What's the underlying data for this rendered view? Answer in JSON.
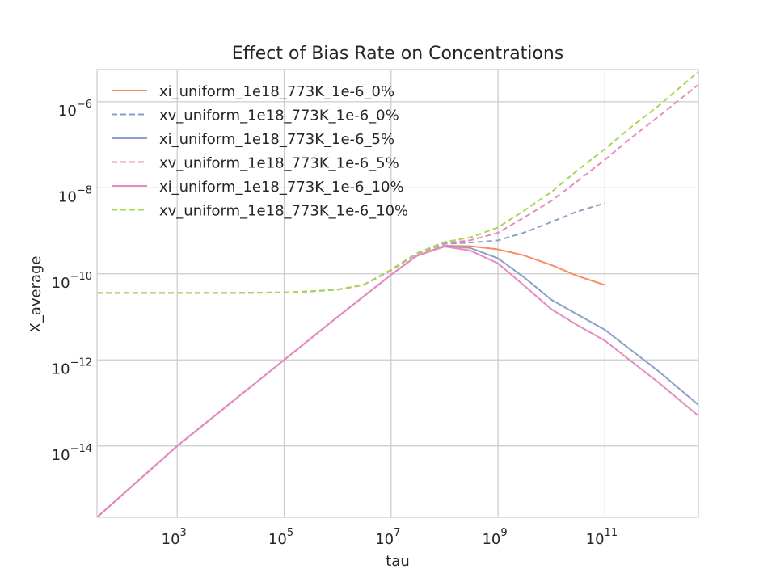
{
  "chart_data": {
    "type": "line",
    "title": "Effect of Bias Rate on Concentrations",
    "xlabel": "tau",
    "ylabel": "X_average",
    "x_scale": "log",
    "y_scale": "log",
    "xlim": [
      31.6,
      5600000000000.0
    ],
    "ylim": [
      2.2e-16,
      5.6e-06
    ],
    "x_ticks": [
      {
        "value": 1000,
        "base": "10",
        "exp": "3"
      },
      {
        "value": 100000,
        "base": "10",
        "exp": "5"
      },
      {
        "value": 10000000,
        "base": "10",
        "exp": "7"
      },
      {
        "value": 1000000000,
        "base": "10",
        "exp": "9"
      },
      {
        "value": 100000000000,
        "base": "10",
        "exp": "11"
      }
    ],
    "y_ticks": [
      {
        "value": 1e-14,
        "base": "10",
        "exp": "−14"
      },
      {
        "value": 1e-12,
        "base": "10",
        "exp": "−12"
      },
      {
        "value": 1e-10,
        "base": "10",
        "exp": "−10"
      },
      {
        "value": 1e-08,
        "base": "10",
        "exp": "−8"
      },
      {
        "value": 1e-06,
        "base": "10",
        "exp": "−6"
      }
    ],
    "grid": true,
    "legend_position": "top-left",
    "series": [
      {
        "name": "xi_uniform_1e18_773K_1e-6_0%",
        "color": "#fc8d62",
        "dash": "solid",
        "x": [
          31.6,
          1000,
          100000,
          1000000,
          10000000,
          30000000,
          100000000,
          300000000,
          1000000000,
          3000000000,
          10000000000,
          30000000000,
          100000000000
        ],
        "y": [
          2.2e-16,
          1e-14,
          1e-12,
          1e-11,
          9.5e-11,
          2.6e-10,
          4.5e-10,
          4.4e-10,
          3.7e-10,
          2.7e-10,
          1.6e-10,
          9e-11,
          5.5e-11
        ]
      },
      {
        "name": "xv_uniform_1e18_773K_1e-6_0%",
        "color": "#8da0cb",
        "dash": "dashed",
        "x": [
          31.6,
          1000,
          10000,
          100000,
          300000,
          1000000,
          3000000,
          10000000,
          30000000,
          100000000,
          300000000,
          1000000000,
          3000000000,
          10000000000,
          30000000000,
          100000000000
        ],
        "y": [
          3.6e-11,
          3.6e-11,
          3.6e-11,
          3.7e-11,
          3.9e-11,
          4.3e-11,
          5.5e-11,
          1.2e-10,
          2.9e-10,
          5e-10,
          5.3e-10,
          6e-10,
          9e-10,
          1.6e-09,
          2.8e-09,
          4.4e-09
        ]
      },
      {
        "name": "xi_uniform_1e18_773K_1e-6_5%",
        "color": "#8da0cb",
        "dash": "solid",
        "x": [
          31.6,
          1000,
          100000,
          1000000,
          10000000,
          30000000,
          100000000,
          300000000,
          1000000000,
          3000000000,
          10000000000,
          30000000000,
          100000000000,
          1000000000000,
          5600000000000
        ],
        "y": [
          2.2e-16,
          1e-14,
          1e-12,
          1e-11,
          9.5e-11,
          2.6e-10,
          4.4e-10,
          4e-10,
          2.3e-10,
          8.5e-11,
          2.5e-11,
          1.15e-11,
          5e-12,
          5.5e-13,
          9e-14
        ]
      },
      {
        "name": "xv_uniform_1e18_773K_1e-6_5%",
        "color": "#e78ac3",
        "dash": "dashed",
        "x": [
          31.6,
          1000,
          10000,
          100000,
          300000,
          1000000,
          3000000,
          10000000,
          30000000,
          100000000,
          300000000,
          1000000000,
          3000000000,
          10000000000,
          30000000000,
          100000000000,
          300000000000,
          1000000000000,
          5600000000000
        ],
        "y": [
          3.6e-11,
          3.6e-11,
          3.6e-11,
          3.7e-11,
          3.9e-11,
          4.3e-11,
          5.5e-11,
          1.2e-10,
          2.9e-10,
          5.2e-10,
          6e-10,
          9e-10,
          2e-09,
          5e-09,
          1.4e-08,
          4.5e-08,
          1.4e-07,
          4.5e-07,
          2.5e-06
        ]
      },
      {
        "name": "xi_uniform_1e18_773K_1e-6_10%",
        "color": "#e78ac3",
        "dash": "solid",
        "x": [
          31.6,
          1000,
          100000,
          1000000,
          10000000,
          30000000,
          100000000,
          300000000,
          1000000000,
          3000000000,
          10000000000,
          30000000000,
          100000000000,
          1000000000000,
          5600000000000
        ],
        "y": [
          2.2e-16,
          1e-14,
          1e-12,
          1e-11,
          9.5e-11,
          2.6e-10,
          4.3e-10,
          3.5e-10,
          1.75e-10,
          5.5e-11,
          1.5e-11,
          6.5e-12,
          2.8e-12,
          3e-13,
          5e-14
        ]
      },
      {
        "name": "xv_uniform_1e18_773K_1e-6_10%",
        "color": "#a6d854",
        "dash": "dashed",
        "x": [
          31.6,
          1000,
          10000,
          100000,
          300000,
          1000000,
          3000000,
          10000000,
          30000000,
          100000000,
          300000000,
          1000000000,
          3000000000,
          10000000000,
          30000000000,
          100000000000,
          300000000000,
          1000000000000,
          5600000000000
        ],
        "y": [
          3.6e-11,
          3.6e-11,
          3.6e-11,
          3.7e-11,
          3.9e-11,
          4.3e-11,
          5.5e-11,
          1.25e-10,
          3e-10,
          5.5e-10,
          7e-10,
          1.2e-09,
          2.9e-09,
          8e-09,
          2.5e-08,
          8e-08,
          2.5e-07,
          8e-07,
          5e-06
        ]
      }
    ]
  }
}
